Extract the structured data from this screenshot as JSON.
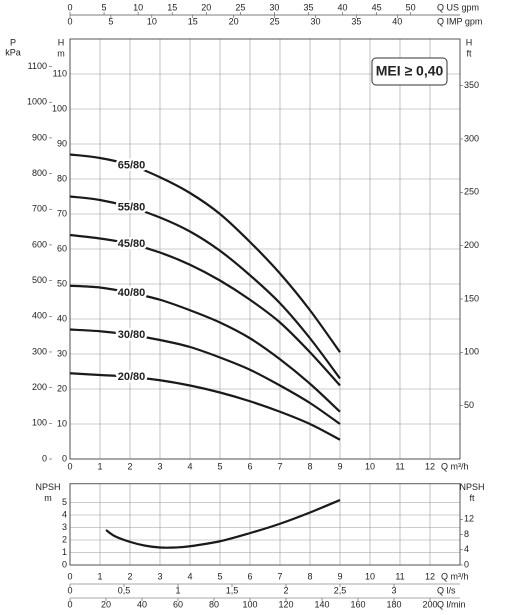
{
  "chart_data": [
    {
      "type": "line",
      "annotation": "MEI ≥ 0,40",
      "xlabel": "Q m³/h",
      "xlim": [
        0,
        13
      ],
      "xticks": [
        0,
        1,
        2,
        3,
        4,
        5,
        6,
        7,
        8,
        9,
        10,
        11,
        12
      ],
      "ylabel": "H",
      "yunit": "m",
      "ylim": [
        0,
        120
      ],
      "yticks": [
        0,
        10,
        20,
        30,
        40,
        50,
        60,
        70,
        80,
        90,
        100,
        110
      ],
      "grid": true,
      "axes": [
        {
          "side": "left",
          "label": "P",
          "unit": "kPa",
          "lim": [
            0,
            1177.2
          ],
          "ticks": [
            0,
            100,
            200,
            300,
            400,
            500,
            600,
            700,
            800,
            900,
            1000,
            1100
          ]
        },
        {
          "side": "right",
          "label": "H",
          "unit": "ft",
          "lim": [
            0,
            393.7
          ],
          "ticks": [
            50,
            100,
            150,
            200,
            250,
            300,
            350
          ]
        },
        {
          "side": "top-outer",
          "label": "Q US gpm",
          "lim": [
            0,
            57.24
          ],
          "ticks": [
            0,
            5,
            10,
            15,
            20,
            25,
            30,
            35,
            40,
            45,
            50
          ]
        },
        {
          "side": "top-inner",
          "label": "Q IMP gpm",
          "lim": [
            0,
            47.66
          ],
          "ticks": [
            0,
            5,
            10,
            15,
            20,
            25,
            30,
            35,
            40
          ]
        }
      ],
      "x": [
        0,
        1,
        2,
        3,
        4,
        5,
        6,
        7,
        8,
        9
      ],
      "series": [
        {
          "name": "65/80",
          "color": "#1a1a1a",
          "values": [
            87,
            86,
            84,
            80.5,
            76,
            70,
            62,
            53,
            42.5,
            30.5
          ]
        },
        {
          "name": "55/80",
          "color": "#1a1a1a",
          "values": [
            75,
            74,
            72,
            69,
            65,
            59.5,
            52.5,
            44.5,
            34.5,
            23
          ]
        },
        {
          "name": "45/80",
          "color": "#1a1a1a",
          "values": [
            64,
            63,
            61.5,
            59,
            55.5,
            51,
            45.5,
            39,
            30.5,
            21
          ]
        },
        {
          "name": "40/80",
          "color": "#1a1a1a",
          "values": [
            49.5,
            49,
            47.5,
            45.5,
            42.5,
            39,
            34.5,
            28.5,
            21.5,
            13.5
          ]
        },
        {
          "name": "30/80",
          "color": "#1a1a1a",
          "values": [
            37,
            36.5,
            35.5,
            34,
            32,
            29,
            25.5,
            21,
            16,
            10
          ]
        },
        {
          "name": "20/80",
          "color": "#1a1a1a",
          "values": [
            24.5,
            24,
            23.5,
            22.5,
            21,
            19,
            16.5,
            13.5,
            10,
            5.5
          ]
        }
      ]
    },
    {
      "type": "line",
      "xlabel": "Q m³/h",
      "xlim": [
        0,
        13
      ],
      "xticks": [
        0,
        1,
        2,
        3,
        4,
        5,
        6,
        7,
        8,
        9,
        10,
        11,
        12
      ],
      "ylabel": "NPSH",
      "yunit": "m",
      "ylim": [
        0,
        6.5
      ],
      "yticks": [
        0,
        1,
        2,
        3,
        4,
        5
      ],
      "grid": true,
      "axes": [
        {
          "side": "right",
          "label": "NPSH",
          "unit": "ft",
          "lim": [
            0,
            21.33
          ],
          "ticks": [
            0,
            4,
            8,
            12
          ]
        },
        {
          "side": "bottom-inner",
          "label": "Q l/s",
          "lim": [
            0,
            3.611
          ],
          "ticks": [
            0,
            {
              "value": 0.5,
              "label": "0,5"
            },
            1,
            {
              "value": 1.5,
              "label": "1,5"
            },
            2,
            {
              "value": 2.5,
              "label": "2,5"
            },
            3
          ]
        },
        {
          "side": "bottom-outer",
          "label": "Q l/min",
          "lim": [
            0,
            216.67
          ],
          "ticks": [
            0,
            20,
            40,
            60,
            80,
            100,
            120,
            140,
            160,
            180,
            200
          ]
        }
      ],
      "x": [
        1.2,
        1.5,
        2,
        2.5,
        3,
        3.5,
        4,
        5,
        6,
        7,
        8,
        9
      ],
      "series": [
        {
          "color": "#1a1a1a",
          "values": [
            2.8,
            2.3,
            1.85,
            1.55,
            1.4,
            1.4,
            1.5,
            1.9,
            2.55,
            3.3,
            4.2,
            5.2
          ]
        }
      ]
    }
  ]
}
